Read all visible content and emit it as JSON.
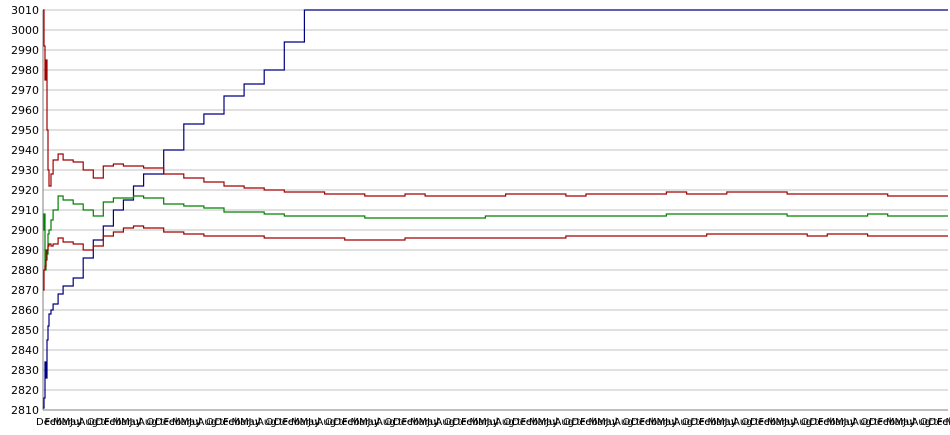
{
  "chart_data": {
    "type": "line",
    "title": "",
    "xlabel": "",
    "ylabel": "",
    "ylim": [
      2810,
      3010
    ],
    "yticks": [
      2810,
      2820,
      2830,
      2840,
      2850,
      2860,
      2870,
      2880,
      2890,
      2900,
      2910,
      2920,
      2930,
      2940,
      2950,
      2960,
      2970,
      2980,
      2990,
      3000,
      3010
    ],
    "grid": true,
    "legend": "none",
    "x_tick_labels_repeating": [
      "Dec",
      "Feb",
      "Mar",
      "May",
      "Jul",
      "Aug",
      "Oct"
    ],
    "x": [
      0,
      1,
      2,
      3,
      4,
      5,
      6,
      8,
      10,
      15,
      20,
      30,
      40,
      50,
      60,
      70,
      80,
      90,
      100,
      120,
      140,
      160,
      180,
      200,
      220,
      240,
      260,
      280,
      300,
      320,
      340,
      360,
      380,
      400,
      420,
      440,
      460,
      480,
      500,
      520,
      540,
      560,
      580,
      600,
      620,
      640,
      660,
      680,
      700,
      720,
      740,
      760,
      780,
      800,
      820,
      840,
      860,
      880,
      900
    ],
    "series": [
      {
        "color": "#000080",
        "values": [
          2811,
          2816,
          2834,
          2826,
          2845,
          2852,
          2858,
          2860,
          2863,
          2868,
          2872,
          2876,
          2886,
          2895,
          2902,
          2910,
          2915,
          2922,
          2928,
          2940,
          2953,
          2958,
          2967,
          2973,
          2980,
          2994,
          3010,
          3010,
          3010,
          3010,
          3010,
          3010,
          3010,
          3010,
          3010,
          3010,
          3010,
          3010,
          3010,
          3010,
          3010,
          3010,
          3010,
          3010,
          3010,
          3010,
          3010,
          3010,
          3010,
          3010,
          3010,
          3010,
          3010,
          3010,
          3010,
          3010,
          3010,
          3010,
          3010
        ]
      },
      {
        "color": "#a00000",
        "values": [
          3010,
          2992,
          2975,
          2985,
          2950,
          2930,
          2922,
          2928,
          2935,
          2938,
          2935,
          2934,
          2930,
          2926,
          2932,
          2933,
          2932,
          2932,
          2931,
          2928,
          2926,
          2924,
          2922,
          2921,
          2920,
          2919,
          2919,
          2918,
          2918,
          2917,
          2917,
          2918,
          2917,
          2917,
          2917,
          2917,
          2918,
          2918,
          2918,
          2917,
          2918,
          2918,
          2918,
          2918,
          2919,
          2918,
          2918,
          2919,
          2919,
          2919,
          2918,
          2918,
          2918,
          2918,
          2918,
          2917,
          2917,
          2917,
          2917
        ]
      },
      {
        "color": "#008000",
        "values": [
          2900,
          2908,
          2880,
          2890,
          2888,
          2898,
          2900,
          2905,
          2910,
          2917,
          2915,
          2913,
          2910,
          2907,
          2914,
          2916,
          2916,
          2917,
          2916,
          2913,
          2912,
          2911,
          2909,
          2909,
          2908,
          2907,
          2907,
          2907,
          2907,
          2906,
          2906,
          2906,
          2906,
          2906,
          2906,
          2907,
          2907,
          2907,
          2907,
          2907,
          2907,
          2907,
          2907,
          2907,
          2908,
          2908,
          2908,
          2908,
          2908,
          2908,
          2907,
          2907,
          2907,
          2907,
          2908,
          2907,
          2907,
          2907,
          2907
        ]
      },
      {
        "color": "#a00000",
        "values": [
          2870,
          2880,
          2882,
          2885,
          2890,
          2892,
          2893,
          2892,
          2893,
          2896,
          2894,
          2893,
          2890,
          2892,
          2897,
          2899,
          2901,
          2902,
          2901,
          2899,
          2898,
          2897,
          2897,
          2897,
          2896,
          2896,
          2896,
          2896,
          2895,
          2895,
          2895,
          2896,
          2896,
          2896,
          2896,
          2896,
          2896,
          2896,
          2896,
          2897,
          2897,
          2897,
          2897,
          2897,
          2897,
          2897,
          2898,
          2898,
          2898,
          2898,
          2898,
          2897,
          2898,
          2898,
          2897,
          2897,
          2897,
          2897,
          2897
        ]
      }
    ]
  }
}
